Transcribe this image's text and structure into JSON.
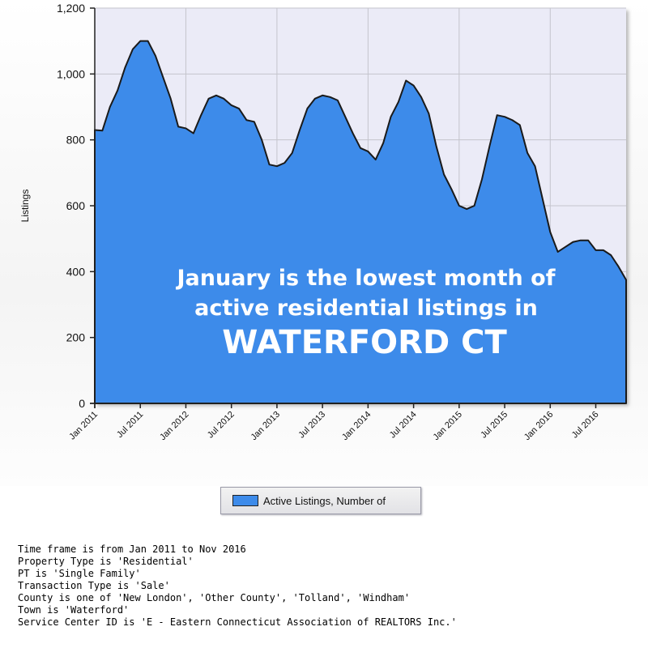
{
  "chart_data": {
    "type": "area",
    "ylabel": "Listings",
    "ylim": [
      0,
      1200
    ],
    "yticks": [
      "0",
      "200",
      "400",
      "600",
      "800",
      "1,000",
      "1,200"
    ],
    "ytick_values": [
      0,
      200,
      400,
      600,
      800,
      1000,
      1200
    ],
    "xtick_labels": [
      "Jan 2011",
      "Jul 2011",
      "Jan 2012",
      "Jul 2012",
      "Jan 2013",
      "Jul 2013",
      "Jan 2014",
      "Jul 2014",
      "Jan 2015",
      "Jul 2015",
      "Jan 2016",
      "Jul 2016"
    ],
    "x_start": "Jan 2011",
    "x_end": "Nov 2016",
    "grid": true,
    "fill_color": "#3d8bea",
    "series": [
      {
        "name": "Active Listings, Number of",
        "values": [
          830,
          828,
          900,
          950,
          1020,
          1075,
          1100,
          1100,
          1055,
          990,
          925,
          840,
          835,
          820,
          875,
          925,
          935,
          925,
          905,
          895,
          860,
          855,
          800,
          725,
          720,
          730,
          760,
          830,
          895,
          925,
          935,
          930,
          920,
          870,
          820,
          775,
          765,
          740,
          790,
          870,
          915,
          980,
          965,
          930,
          880,
          780,
          695,
          650,
          600,
          590,
          600,
          680,
          780,
          875,
          870,
          860,
          845,
          760,
          720,
          620,
          520,
          460,
          475,
          490,
          495,
          495,
          465,
          465,
          450,
          415,
          375
        ]
      }
    ]
  },
  "overlay": {
    "line1": "January is the lowest month of",
    "line2": "active residential listings in",
    "line3": "WATERFORD CT"
  },
  "legend": {
    "label": "Active Listings, Number of"
  },
  "footer": [
    "Time frame is from Jan 2011 to Nov 2016",
    "Property Type is 'Residential'",
    "PT is 'Single Family'",
    "Transaction Type is 'Sale'",
    "County is one of 'New London', 'Other County', 'Tolland', 'Windham'",
    "Town is 'Waterford'",
    "Service Center ID is 'E - Eastern Connecticut Association of REALTORS Inc.'"
  ]
}
